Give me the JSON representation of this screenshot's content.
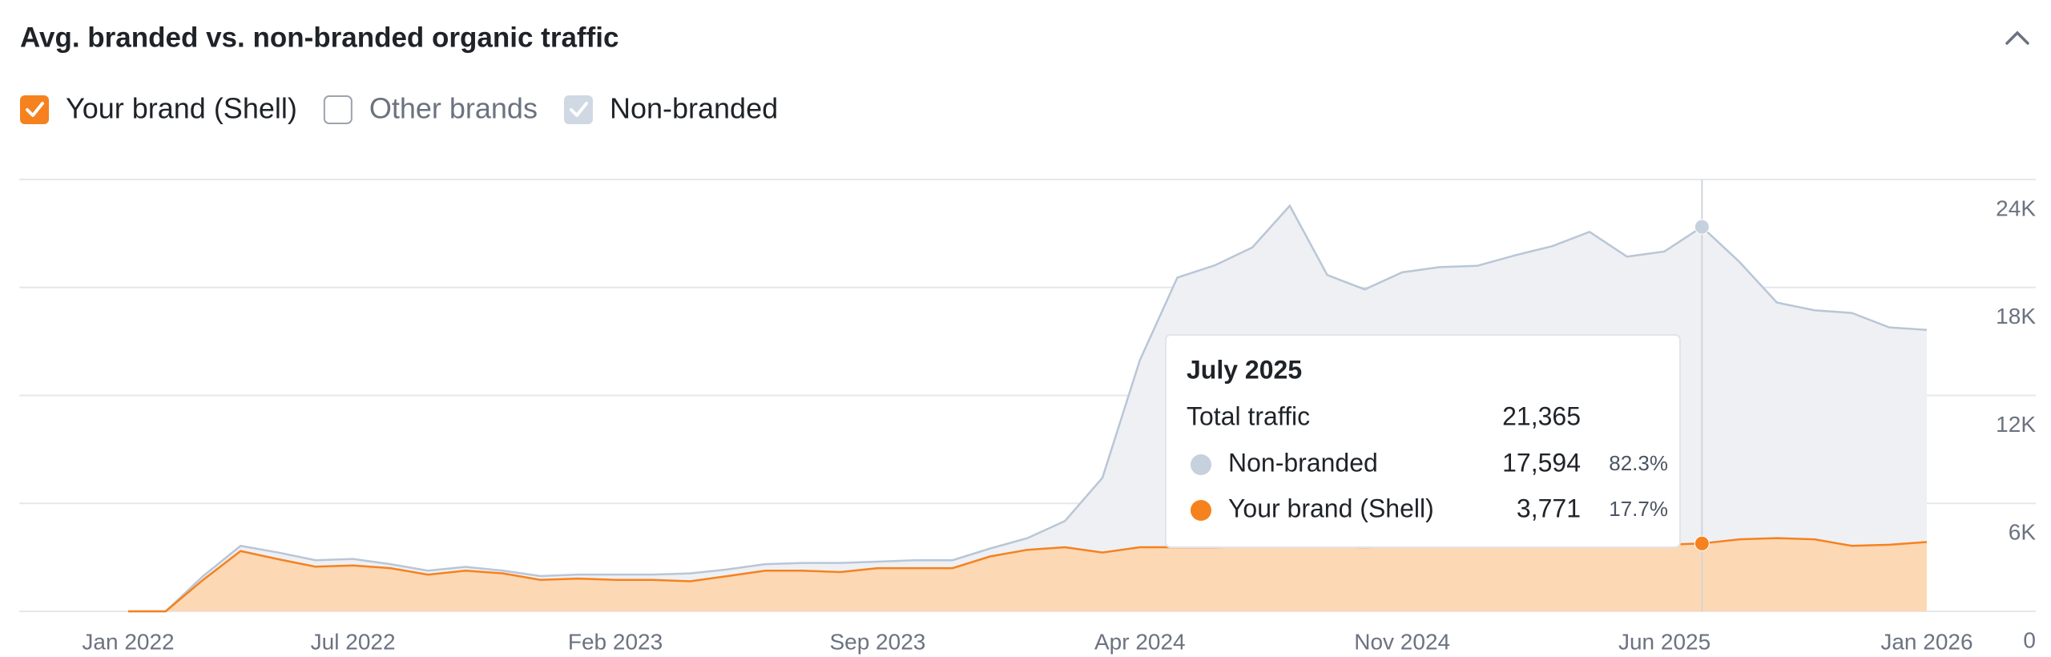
{
  "chart_data": {
    "type": "stacked-area",
    "title": "Avg. branded vs. non-branded organic traffic",
    "categories": [
      "Jan 2022",
      null,
      null,
      null,
      null,
      null,
      "Jul 2022",
      null,
      null,
      null,
      null,
      null,
      null,
      "Feb 2023",
      null,
      null,
      null,
      null,
      null,
      null,
      "Sep 2023",
      null,
      null,
      null,
      null,
      null,
      null,
      "Apr 2024",
      null,
      null,
      null,
      null,
      null,
      null,
      "Nov 2024",
      null,
      null,
      null,
      null,
      null,
      null,
      "Jun 2025",
      null,
      null,
      null,
      null,
      null,
      null,
      "Jan 2026"
    ],
    "series": [
      {
        "name": "Your brand (Shell)",
        "color": "#f5821f",
        "fill": "#fdd8b4",
        "checked": true,
        "values": [
          0,
          0,
          1750,
          3350,
          2900,
          2480,
          2550,
          2400,
          2040,
          2260,
          2110,
          1750,
          1820,
          1750,
          1750,
          1670,
          1960,
          2260,
          2260,
          2180,
          2400,
          2400,
          2400,
          3050,
          3420,
          3560,
          3270,
          3560,
          3560,
          3560,
          3600,
          3640,
          3600,
          3560,
          3600,
          3640,
          3670,
          3700,
          3700,
          3740,
          3740,
          3700,
          3771,
          4000,
          4070,
          4000,
          3640,
          3700,
          3850
        ]
      },
      {
        "name": "Non-branded",
        "color": "#b9c6d6",
        "fill": "#eef0f4",
        "checked": true,
        "values": [
          0,
          0,
          210,
          290,
          370,
          360,
          360,
          220,
          220,
          210,
          150,
          210,
          220,
          290,
          290,
          440,
          370,
          360,
          430,
          510,
          360,
          440,
          440,
          440,
          650,
          1460,
          4150,
          10400,
          14990,
          15670,
          16620,
          18900,
          15090,
          14330,
          15240,
          15490,
          15530,
          16080,
          16590,
          17350,
          15970,
          16300,
          17594,
          15420,
          13090,
          12730,
          12940,
          12080,
          11790
        ]
      }
    ],
    "other_series": {
      "name": "Other brands",
      "checked": false
    },
    "ylim": [
      0,
      24000
    ],
    "yticks": [
      0,
      {
        "value": 6000,
        "label": "6K"
      },
      {
        "value": 12000,
        "label": "12K"
      },
      {
        "value": 18000,
        "label": "18K"
      },
      {
        "value": 24000,
        "label": "24K"
      }
    ],
    "grid": true,
    "tooltip": {
      "title": "July 2025",
      "total_name": "Total traffic",
      "total": "21,365",
      "rows": [
        {
          "value": "17,594",
          "share": "82.3%"
        },
        {
          "value": "3,771",
          "share": "17.7%"
        }
      ]
    }
  }
}
